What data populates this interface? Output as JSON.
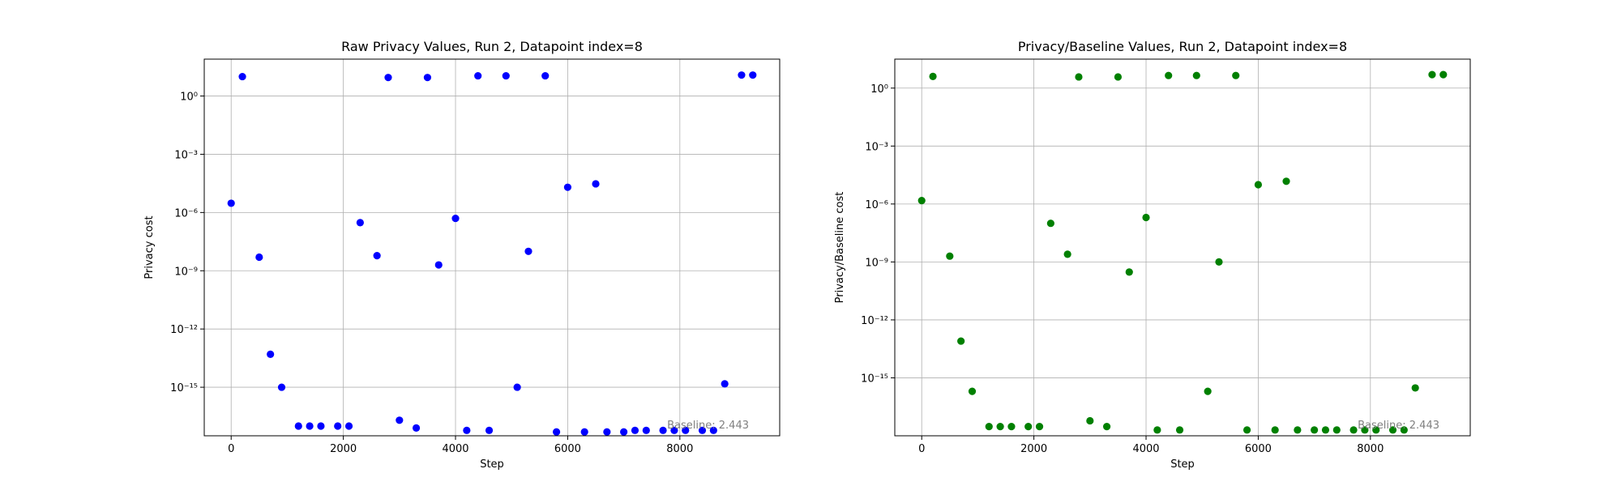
{
  "chart_data": [
    {
      "type": "scatter",
      "title": "Raw Privacy Values, Run 2, Datapoint index=8",
      "xlabel": "Step",
      "ylabel": "Privacy cost",
      "yscale": "log",
      "xlim": [
        -480,
        9780
      ],
      "ylim_exp": [
        -17.5,
        1.9
      ],
      "xticks": [
        0,
        2000,
        4000,
        6000,
        8000
      ],
      "yticks_exp": [
        0,
        -3,
        -6,
        -9,
        -12,
        -15
      ],
      "grid": true,
      "color": "#0000ff",
      "annotation": "Baseline: 2.443",
      "x": [
        0,
        200,
        500,
        700,
        900,
        1200,
        1400,
        1600,
        1900,
        2100,
        2300,
        2600,
        2800,
        3000,
        3300,
        3500,
        3700,
        4000,
        4200,
        4400,
        4600,
        4900,
        5100,
        5300,
        5600,
        5800,
        6000,
        6300,
        6500,
        6700,
        7000,
        7200,
        7400,
        7700,
        7900,
        8100,
        8400,
        8600,
        8800,
        9100,
        9300
      ],
      "y": [
        3e-06,
        10,
        5e-09,
        5e-14,
        1e-15,
        1e-17,
        1e-17,
        1e-17,
        1e-17,
        1e-17,
        3e-07,
        6e-09,
        9,
        2e-17,
        8e-18,
        9,
        2e-09,
        5e-07,
        6e-18,
        11,
        6e-18,
        11,
        1e-15,
        1e-08,
        11,
        5e-18,
        2e-05,
        5e-18,
        3e-05,
        5e-18,
        5e-18,
        6e-18,
        6e-18,
        6e-18,
        6e-18,
        6e-18,
        6e-18,
        6e-18,
        1.5e-15,
        12,
        12
      ]
    },
    {
      "type": "scatter",
      "title": "Privacy/Baseline Values, Run 2, Datapoint index=8",
      "xlabel": "Step",
      "ylabel": "Privacy/Baseline cost",
      "yscale": "log",
      "xlim": [
        -480,
        9780
      ],
      "ylim_exp": [
        -18.0,
        1.5
      ],
      "xticks": [
        0,
        2000,
        4000,
        6000,
        8000
      ],
      "yticks_exp": [
        0,
        -3,
        -6,
        -9,
        -12,
        -15
      ],
      "grid": true,
      "color": "#008000",
      "annotation": "Baseline: 2.443",
      "x": [
        0,
        200,
        500,
        700,
        900,
        1200,
        1400,
        1600,
        1900,
        2100,
        2300,
        2600,
        2800,
        3000,
        3300,
        3500,
        3700,
        4000,
        4200,
        4400,
        4600,
        4900,
        5100,
        5300,
        5600,
        5800,
        6000,
        6300,
        6500,
        6700,
        7000,
        7200,
        7400,
        7700,
        7900,
        8100,
        8400,
        8600,
        8800,
        9100,
        9300
      ],
      "y": [
        1.5e-06,
        4,
        2e-09,
        8e-14,
        2e-16,
        3e-18,
        3e-18,
        3e-18,
        3e-18,
        3e-18,
        1e-07,
        2.5e-09,
        3.8,
        6e-18,
        3e-18,
        3.8,
        3e-10,
        2e-07,
        2e-18,
        4.5,
        2e-18,
        4.5,
        2e-16,
        1e-09,
        4.5,
        2e-18,
        1e-05,
        2e-18,
        1.5e-05,
        2e-18,
        2e-18,
        2e-18,
        2e-18,
        2e-18,
        2e-18,
        2e-18,
        2e-18,
        2e-18,
        3e-16,
        5,
        5
      ]
    }
  ]
}
